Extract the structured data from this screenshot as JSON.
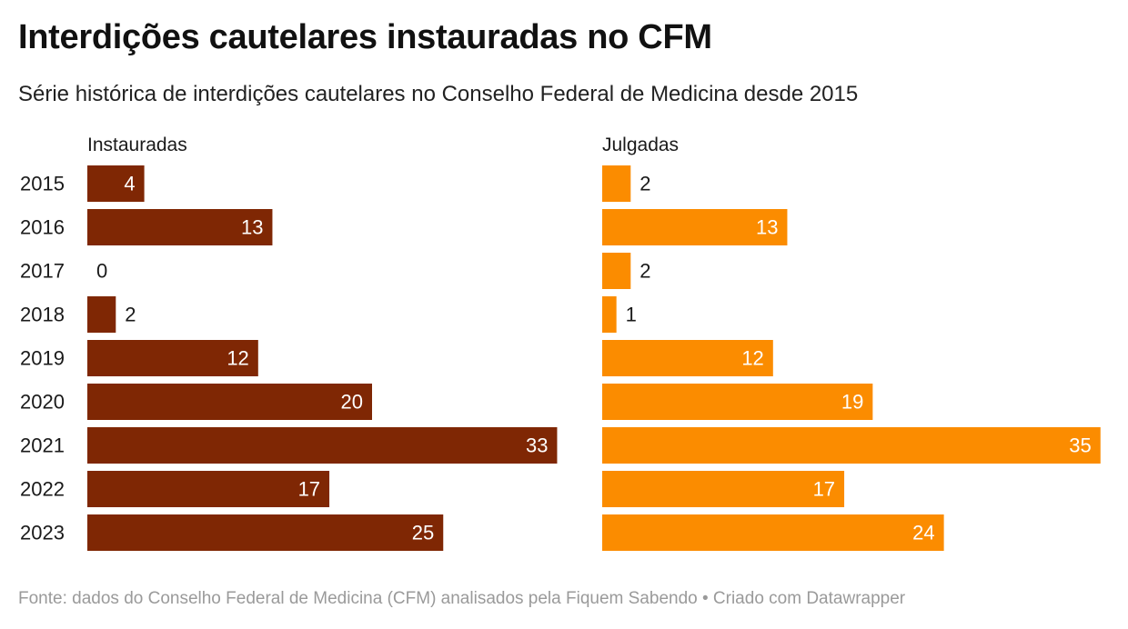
{
  "title": "Interdições cautelares instauradas no CFM",
  "subtitle": "Série histórica de interdições cautelares no Conselho Federal de Medicina desde 2015",
  "footer": "Fonte: dados do Conselho Federal de Medicina (CFM) analisados pela Fiquem Sabendo • Criado com Datawrapper",
  "chart_data": {
    "type": "bar",
    "orientation": "horizontal",
    "grid": false,
    "categories": [
      "2015",
      "2016",
      "2017",
      "2018",
      "2019",
      "2020",
      "2021",
      "2022",
      "2023"
    ],
    "series": [
      {
        "name": "Instauradas",
        "color": "#7f2704",
        "values": [
          4,
          13,
          0,
          2,
          12,
          20,
          33,
          17,
          25
        ]
      },
      {
        "name": "Julgadas",
        "color": "#fb8c00",
        "values": [
          2,
          13,
          2,
          1,
          12,
          19,
          35,
          17,
          24
        ]
      }
    ],
    "xlim": [
      0,
      35
    ]
  }
}
